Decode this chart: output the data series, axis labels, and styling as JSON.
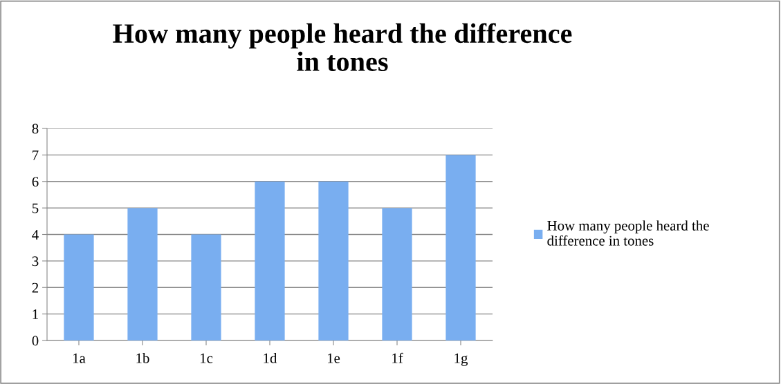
{
  "chart_data": {
    "type": "bar",
    "title": "How many people heard the difference\nin tones",
    "categories": [
      "1a",
      "1b",
      "1c",
      "1d",
      "1e",
      "1f",
      "1g"
    ],
    "series": [
      {
        "name": "How many people heard the\ndifference in tones",
        "color": "#79aef0",
        "values": [
          4,
          5,
          4,
          6,
          6,
          5,
          7
        ]
      }
    ],
    "ylim": [
      0,
      8
    ],
    "yticks": [
      0,
      1,
      2,
      3,
      4,
      5,
      6,
      7,
      8
    ],
    "grid": "y",
    "legend": "right"
  }
}
